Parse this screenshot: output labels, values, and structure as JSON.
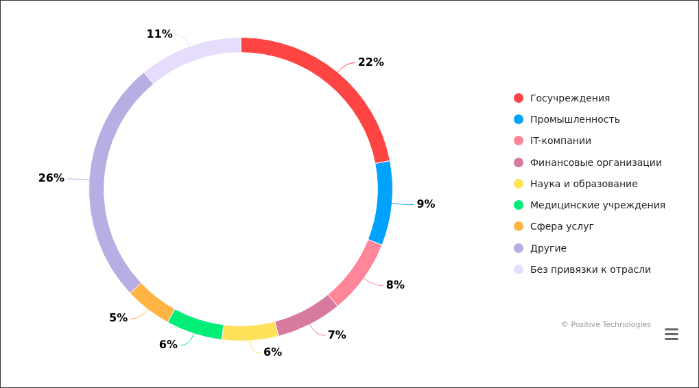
{
  "chart_data": {
    "type": "doughnut",
    "categories": [
      "Госучреждения",
      "Промышленность",
      "IT-компании",
      "Финансовые организации",
      "Наука и образование",
      "Медицинские учреждения",
      "Сфера услуг",
      "Другие",
      "Без привязки к отрасли"
    ],
    "values": [
      22,
      9,
      8,
      7,
      6,
      6,
      5,
      26,
      11
    ],
    "value_labels": [
      "22%",
      "9%",
      "8%",
      "7%",
      "6%",
      "6%",
      "5%",
      "26%",
      "11%"
    ],
    "colors": [
      "#ff4444",
      "#00a2ff",
      "#ff8599",
      "#d87a9f",
      "#ffe15a",
      "#00ee77",
      "#ffb444",
      "#b8aee3",
      "#e6dcfc"
    ],
    "data_labels": true,
    "legend": "right",
    "credits": "© Positive Technologies"
  }
}
